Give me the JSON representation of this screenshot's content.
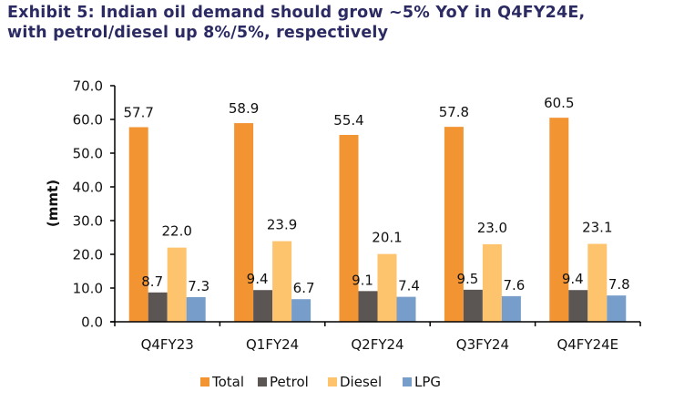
{
  "title_line1": "Exhibit 5: Indian oil demand should grow ~5% YoY in Q4FY24E,",
  "title_line2": "with petrol/diesel up 8%/5%, respectively",
  "chart_data": {
    "type": "bar",
    "title": "Exhibit 5: Indian oil demand should grow ~5% YoY in Q4FY24E, with petrol/diesel up 8%/5%, respectively",
    "xlabel": "",
    "ylabel": "(mmt)",
    "ylim": [
      0,
      70
    ],
    "yticks": [
      "0.0",
      "10.0",
      "20.0",
      "30.0",
      "40.0",
      "50.0",
      "60.0",
      "70.0"
    ],
    "grid": false,
    "legend_position": "bottom",
    "categories": [
      "Q4FY23",
      "Q1FY24",
      "Q2FY24",
      "Q3FY24",
      "Q4FY24E"
    ],
    "series": [
      {
        "name": "Total",
        "color": "#f39433",
        "values": [
          57.7,
          58.9,
          55.4,
          57.8,
          60.5
        ],
        "labels": [
          "57.7",
          "58.9",
          "55.4",
          "57.8",
          "60.5"
        ]
      },
      {
        "name": "Petrol",
        "color": "#5b5653",
        "values": [
          8.7,
          9.4,
          9.1,
          9.5,
          9.4
        ],
        "labels": [
          "8.7",
          "9.4",
          "9.1",
          "9.5",
          "9.4"
        ]
      },
      {
        "name": "Diesel",
        "color": "#fdc46d",
        "values": [
          22.0,
          23.9,
          20.1,
          23.0,
          23.1
        ],
        "labels": [
          "22.0",
          "23.9",
          "20.1",
          "23.0",
          "23.1"
        ]
      },
      {
        "name": "LPG",
        "color": "#779ecb",
        "values": [
          7.3,
          6.7,
          7.4,
          7.6,
          7.8
        ],
        "labels": [
          "7.3",
          "6.7",
          "7.4",
          "7.6",
          "7.8"
        ]
      }
    ]
  }
}
